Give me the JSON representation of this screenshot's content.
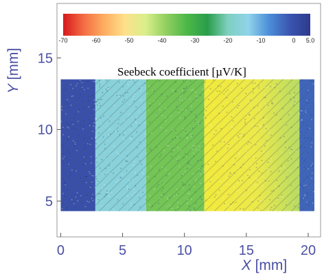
{
  "chart_data": {
    "type": "heatmap",
    "title": "Seebeck coefficient [µV/K]",
    "xlabel_var": "X",
    "xlabel_unit": " [mm]",
    "ylabel_var": "Y",
    "ylabel_unit": " [mm]",
    "xlim": [
      -0.3,
      21
    ],
    "ylim": [
      2.5,
      18.8
    ],
    "x_ticks": [
      0,
      5,
      10,
      15,
      20
    ],
    "y_ticks": [
      5,
      10,
      15
    ],
    "data_extent": {
      "x": [
        0,
        20.5
      ],
      "y": [
        4.3,
        13.5
      ]
    },
    "colorbar": {
      "range": [
        -70,
        5
      ],
      "ticks": [
        -70,
        -60,
        -50,
        -40,
        -30,
        -20,
        -10,
        0,
        5
      ],
      "tick_labels": [
        "-70",
        "-60",
        "-50",
        "-40",
        "-30",
        "-20",
        "-10",
        "0",
        "5.0"
      ],
      "colormap": [
        "#d7191c",
        "#f46d43",
        "#fdae61",
        "#fee08b",
        "#d9ef8b",
        "#91cf60",
        "#4db848",
        "#2a9d4a",
        "#7fd0c0",
        "#8fd3ea",
        "#4b8ed8",
        "#3a55b0",
        "#2e3a8c"
      ]
    },
    "regions": [
      {
        "x_start": 0,
        "x_end": 2.8,
        "value": 0
      },
      {
        "x_start": 2.8,
        "x_end": 6.9,
        "value": -16
      },
      {
        "x_start": 6.9,
        "x_end": 11.6,
        "value": -36
      },
      {
        "x_start": 11.6,
        "x_end": 19.3,
        "value": -51
      },
      {
        "x_start": 19.3,
        "x_end": 20.5,
        "value": -3
      }
    ]
  }
}
